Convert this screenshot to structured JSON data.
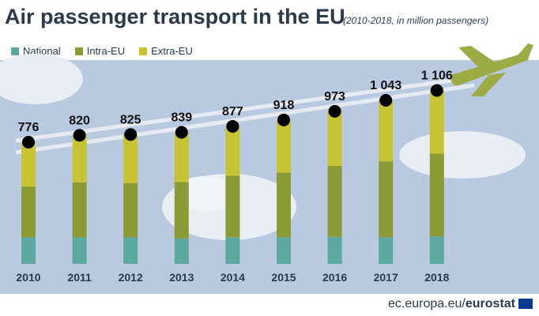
{
  "title": "Air passenger transport in the EU",
  "subtitle": "(2010-2018, in million passengers)",
  "footer": {
    "site": "ec.europa.eu/",
    "brand": "eurostat"
  },
  "colors": {
    "National": "#5aa89e",
    "Intra-EU": "#8c9a34",
    "Extra-EU": "#c8c332",
    "background": "#b9c9df"
  },
  "chart_data": {
    "type": "bar",
    "stacked": true,
    "categories": [
      "2010",
      "2011",
      "2012",
      "2013",
      "2014",
      "2015",
      "2016",
      "2017",
      "2018"
    ],
    "series": [
      {
        "name": "National",
        "values": [
          170,
          170,
          170,
          162,
          170,
          170,
          172,
          170,
          175
        ]
      },
      {
        "name": "Intra-EU",
        "values": [
          323,
          350,
          345,
          360,
          392,
          412,
          453,
          484,
          528
        ]
      },
      {
        "name": "Extra-EU",
        "values": [
          283,
          300,
          310,
          317,
          315,
          336,
          348,
          389,
          403
        ]
      }
    ],
    "totals": [
      776,
      820,
      825,
      839,
      877,
      918,
      973,
      1043,
      1106
    ],
    "total_labels": [
      "776",
      "820",
      "825",
      "839",
      "877",
      "918",
      "973",
      "1 043",
      "1 106"
    ],
    "xlabel": "",
    "ylabel": "",
    "legend_position": "top-left",
    "grid": false
  }
}
